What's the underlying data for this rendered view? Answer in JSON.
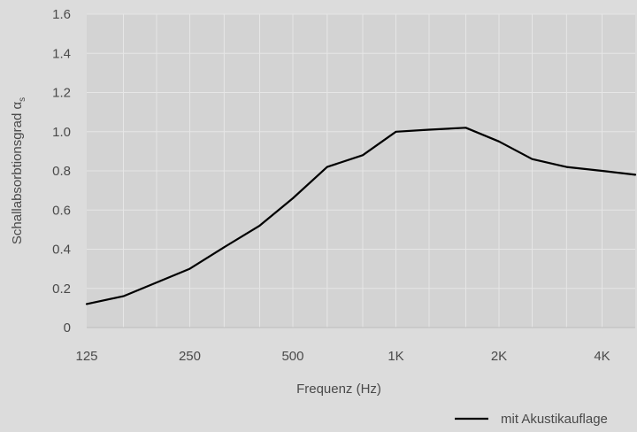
{
  "chart_data": {
    "type": "line",
    "title": "",
    "xlabel": "Frequenz (Hz)",
    "ylabel": "Schallabsorbtionsgrad α",
    "ylabel_subscript": "s",
    "x_scale": "log",
    "x_tick_labels": [
      "125",
      "250",
      "500",
      "1K",
      "2K",
      "4K"
    ],
    "x_tick_values": [
      125,
      250,
      500,
      1000,
      2000,
      4000
    ],
    "y_tick_labels": [
      "0",
      "0.2",
      "0.4",
      "0.6",
      "0.8",
      "1.0",
      "1.2",
      "1.4",
      "1.6"
    ],
    "y_tick_values": [
      0,
      0.2,
      0.4,
      0.6,
      0.8,
      1.0,
      1.2,
      1.4,
      1.6
    ],
    "xlim": [
      125,
      5000
    ],
    "ylim": [
      0,
      1.6
    ],
    "grid": true,
    "legend_position": "bottom-right",
    "series": [
      {
        "name": "mit Akustikauflage",
        "color": "#000000",
        "x": [
          125,
          160,
          200,
          250,
          315,
          400,
          500,
          630,
          800,
          1000,
          1250,
          1600,
          2000,
          2500,
          3150,
          4000,
          5000
        ],
        "y": [
          0.12,
          0.16,
          0.23,
          0.3,
          0.41,
          0.52,
          0.66,
          0.82,
          0.88,
          1.0,
          1.01,
          1.02,
          0.95,
          0.86,
          0.82,
          0.8,
          0.78
        ]
      }
    ]
  }
}
